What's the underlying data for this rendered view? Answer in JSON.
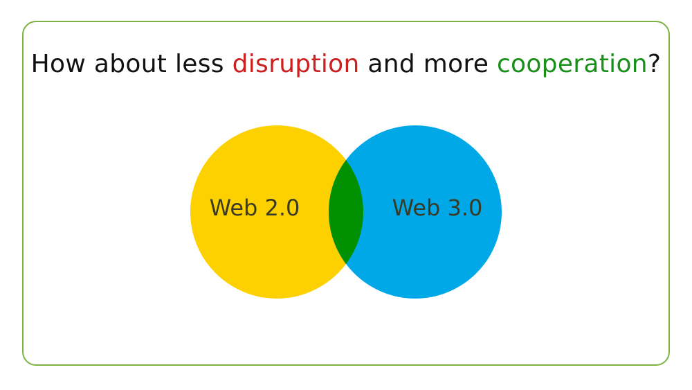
{
  "headline": {
    "part1": "How about less ",
    "word_disruption": "disruption",
    "part2": " and more ",
    "word_cooperation": "cooperation",
    "part3": "?"
  },
  "venn": {
    "left_label": "Web 2.0",
    "right_label": "Web 3.0"
  },
  "colors": {
    "border": "#7cb342",
    "disruption": "#cc1f1f",
    "cooperation": "#1a8f1a",
    "left_circle": "#fdd000",
    "right_circle": "#00a8e8",
    "overlap": "#009000"
  }
}
